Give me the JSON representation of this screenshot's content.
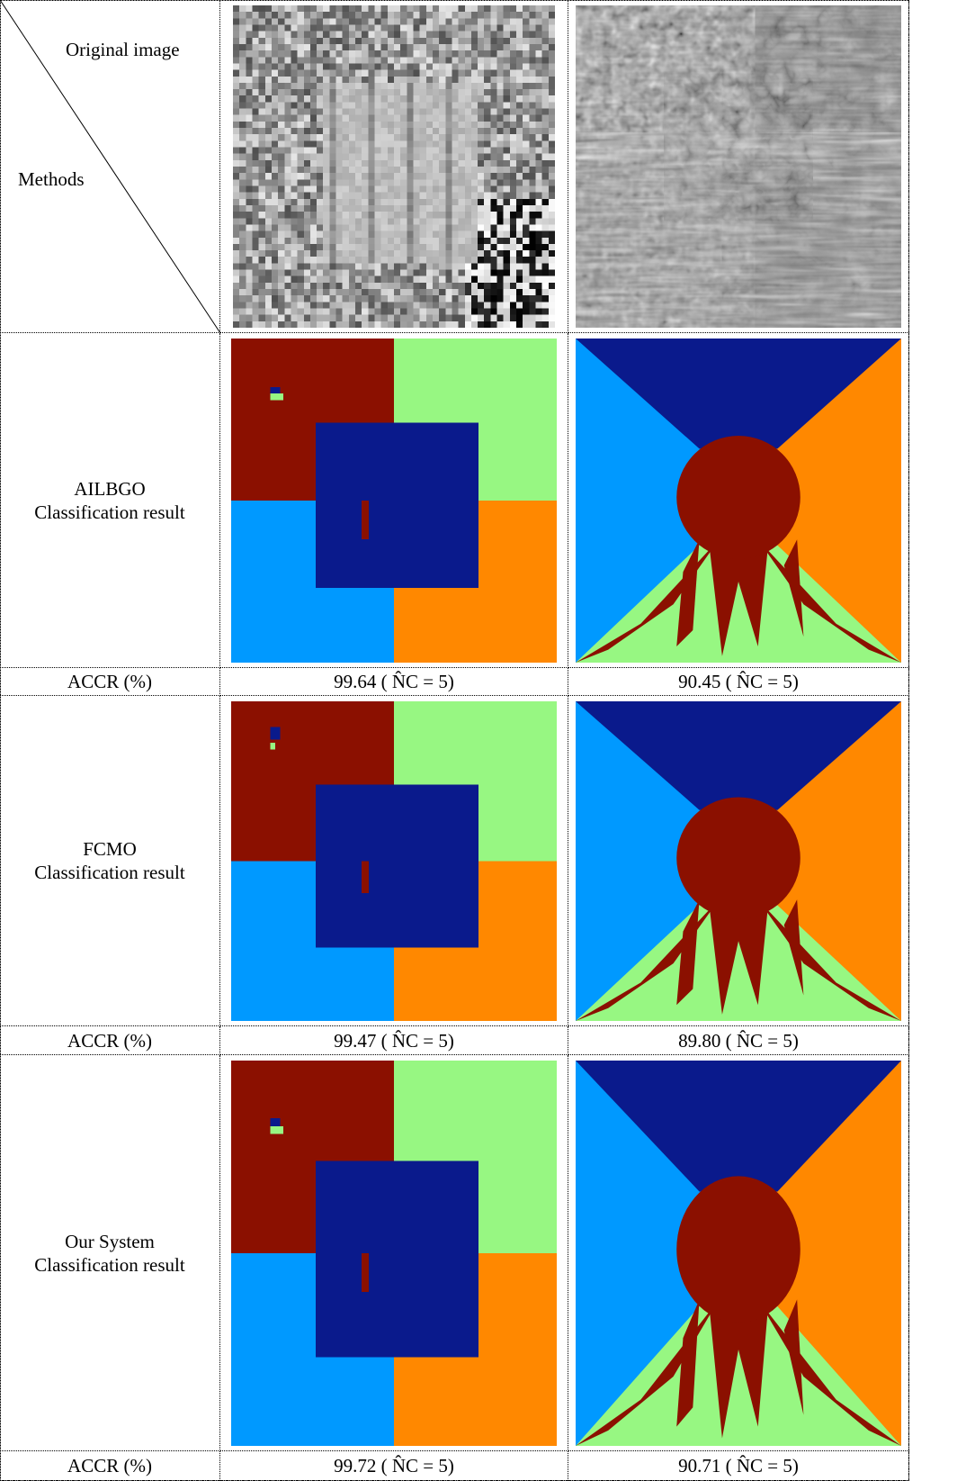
{
  "header": {
    "top_right": "Original image",
    "bottom_left": "Methods"
  },
  "rows": [
    {
      "method": "AILBGO",
      "caption": "Classification result",
      "accr_label": "ACCR (%)",
      "results": [
        "99.64 ( N̂C = 5)",
        "90.45 ( N̂C = 5)"
      ]
    },
    {
      "method": "FCMO",
      "caption": "Classification result",
      "accr_label": "ACCR (%)",
      "results": [
        "99.47 ( N̂C = 5)",
        "89.80 ( N̂C = 5)"
      ]
    },
    {
      "method": "Our System",
      "caption": "Classification result",
      "accr_label": "ACCR (%)",
      "results": [
        "99.72 ( N̂C = 5)",
        "90.71 ( N̂C = 5)"
      ]
    }
  ]
}
